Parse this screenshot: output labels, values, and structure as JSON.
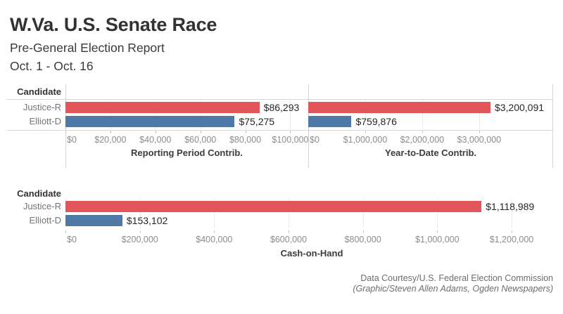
{
  "header": {
    "title": "W.Va. U.S. Senate Race",
    "subtitle1": "Pre-General Election Report",
    "subtitle2": "Oct. 1 - Oct. 16"
  },
  "footer": {
    "line1": "Data Courtesy/U.S. Federal Election Commission",
    "line2": "(Graphic/Steven Allen Adams, Ogden Newspapers)"
  },
  "chart_data": [
    {
      "type": "bar",
      "orientation": "horizontal",
      "title": "Reporting Period Contrib.",
      "row_header": "Candidate",
      "categories": [
        "Justice-R",
        "Elliott-D"
      ],
      "values": [
        86293,
        75275
      ],
      "value_labels": [
        "$86,293",
        "$75,275"
      ],
      "colors": [
        "#E15759",
        "#4E79A7"
      ],
      "axis_max": 108000,
      "grid": true,
      "ticks": [
        {
          "value": 0,
          "label": "$0"
        },
        {
          "value": 20000,
          "label": "$20,000"
        },
        {
          "value": 40000,
          "label": "$40,000"
        },
        {
          "value": 60000,
          "label": "$60,000"
        },
        {
          "value": 80000,
          "label": "$80,000"
        },
        {
          "value": 100000,
          "label": "$100,000"
        }
      ]
    },
    {
      "type": "bar",
      "orientation": "horizontal",
      "title": "Year-to-Date Contrib.",
      "row_header": "Candidate",
      "categories": [
        "Justice-R",
        "Elliott-D"
      ],
      "values": [
        3200091,
        759876
      ],
      "value_labels": [
        "$3,200,091",
        "$759,876"
      ],
      "colors": [
        "#E15759",
        "#4E79A7"
      ],
      "axis_max": 4300000,
      "grid": true,
      "ticks": [
        {
          "value": 0,
          "label": "$0"
        },
        {
          "value": 1000000,
          "label": "$1,000,000"
        },
        {
          "value": 2000000,
          "label": "$2,000,000"
        },
        {
          "value": 3000000,
          "label": "$3,000,000"
        }
      ]
    },
    {
      "type": "bar",
      "orientation": "horizontal",
      "title": "Cash-on-Hand",
      "row_header": "Candidate",
      "categories": [
        "Justice-R",
        "Elliott-D"
      ],
      "values": [
        1118989,
        153102
      ],
      "value_labels": [
        "$1,118,989",
        "$153,102"
      ],
      "colors": [
        "#E15759",
        "#4E79A7"
      ],
      "axis_max": 1325000,
      "grid": true,
      "ticks": [
        {
          "value": 0,
          "label": "$0"
        },
        {
          "value": 200000,
          "label": "$200,000"
        },
        {
          "value": 400000,
          "label": "$400,000"
        },
        {
          "value": 600000,
          "label": "$600,000"
        },
        {
          "value": 800000,
          "label": "$800,000"
        },
        {
          "value": 1000000,
          "label": "$1,000,000"
        },
        {
          "value": 1200000,
          "label": "$1,200,000"
        }
      ]
    }
  ]
}
